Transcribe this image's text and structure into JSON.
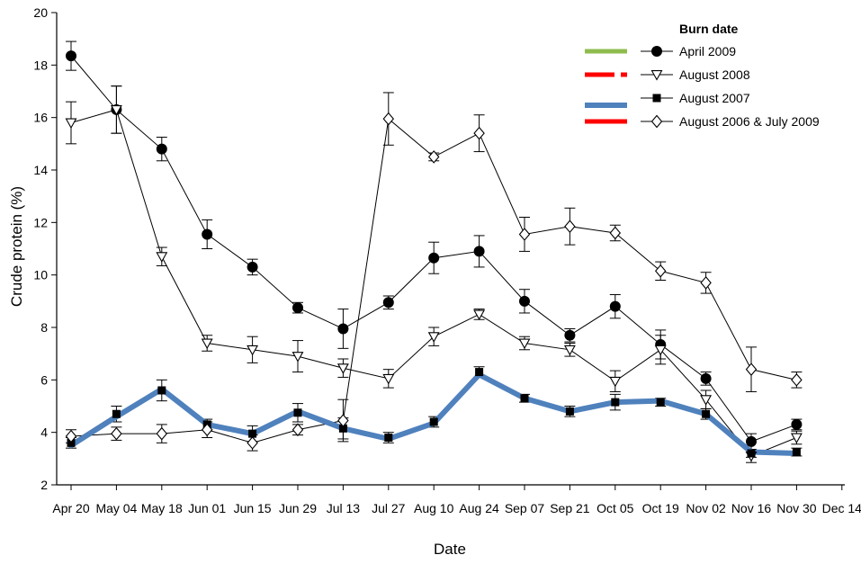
{
  "chart_data": {
    "type": "line",
    "xlabel": "Date",
    "ylabel": "Crude protein (%)",
    "ylim": [
      2,
      20
    ],
    "yticks": [
      2,
      4,
      6,
      8,
      10,
      12,
      14,
      16,
      18,
      20
    ],
    "categories": [
      "Apr 20",
      "May 04",
      "May 18",
      "Jun 01",
      "Jun 15",
      "Jun 29",
      "Jul 13",
      "Jul 27",
      "Aug 10",
      "Aug 24",
      "Sep 07",
      "Sep 21",
      "Oct 05",
      "Oct 19",
      "Nov 02",
      "Nov 16",
      "Nov 30",
      "Dec 14"
    ],
    "legend": {
      "title": "Burn date",
      "position": "top-right",
      "line_swatch_colors": [
        "#8fbc4f",
        "#ff0000",
        "#4f81bd",
        "#ff0000"
      ]
    },
    "series": [
      {
        "name": "April 2009",
        "marker": "filled-circle",
        "color": "#000000",
        "values": [
          18.35,
          16.3,
          14.8,
          11.55,
          10.3,
          8.75,
          7.95,
          8.95,
          10.65,
          10.9,
          9.0,
          7.7,
          8.8,
          7.35,
          6.05,
          3.65,
          4.3,
          null
        ],
        "errors": [
          0.55,
          0.9,
          0.45,
          0.55,
          0.3,
          0.2,
          0.75,
          0.25,
          0.6,
          0.6,
          0.45,
          0.25,
          0.45,
          0.55,
          0.25,
          0.3,
          0.2,
          null
        ]
      },
      {
        "name": "August 2008",
        "marker": "open-triangle-down",
        "color": "#000000",
        "values": [
          15.8,
          16.3,
          10.7,
          7.4,
          7.15,
          6.9,
          6.45,
          6.05,
          7.65,
          8.5,
          7.4,
          7.15,
          5.95,
          7.15,
          5.25,
          3.1,
          3.8,
          null
        ],
        "errors": [
          0.8,
          0.9,
          0.35,
          0.3,
          0.5,
          0.6,
          0.35,
          0.35,
          0.35,
          0.2,
          0.25,
          0.25,
          0.4,
          0.55,
          0.35,
          0.25,
          0.25,
          null
        ]
      },
      {
        "name": "August 2007",
        "marker": "filled-square",
        "color": "#000000",
        "values": [
          3.6,
          4.7,
          5.6,
          4.3,
          3.95,
          4.75,
          4.15,
          3.8,
          4.4,
          6.3,
          5.3,
          4.8,
          5.15,
          5.15,
          4.7,
          3.2,
          3.25,
          null
        ],
        "errors": [
          0.2,
          0.3,
          0.4,
          0.2,
          0.3,
          0.35,
          0.4,
          0.2,
          0.2,
          0.2,
          0.15,
          0.2,
          0.3,
          0.15,
          0.2,
          0.15,
          0.15,
          null
        ]
      },
      {
        "name": "August 2006 & July 2009",
        "marker": "open-diamond",
        "color": "#000000",
        "values": [
          3.85,
          3.95,
          3.95,
          4.1,
          3.6,
          4.1,
          4.45,
          15.95,
          14.5,
          15.4,
          11.55,
          11.85,
          11.6,
          10.15,
          9.7,
          6.4,
          6.0,
          null
        ],
        "errors": [
          0.25,
          0.25,
          0.35,
          0.3,
          0.3,
          0.2,
          0.8,
          1.0,
          0.15,
          0.7,
          0.65,
          0.7,
          0.3,
          0.35,
          0.4,
          0.85,
          0.3,
          null
        ]
      },
      {
        "name": "thick-blue-line",
        "marker": "none",
        "color": "#4f81bd",
        "values": [
          3.5,
          4.6,
          5.65,
          4.3,
          3.95,
          4.8,
          4.15,
          3.75,
          4.35,
          6.2,
          5.3,
          4.8,
          5.15,
          5.2,
          4.7,
          3.25,
          3.2,
          null
        ]
      }
    ]
  }
}
